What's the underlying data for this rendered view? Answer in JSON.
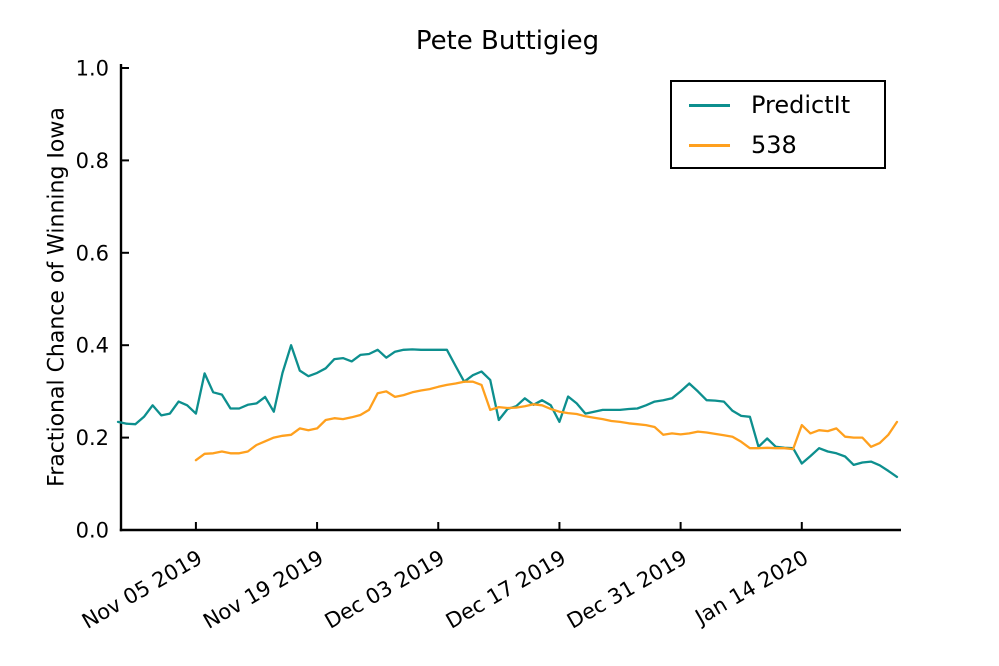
{
  "figure": {
    "background": "#ffffff",
    "text_color": "#000000"
  },
  "chart_data": {
    "type": "line",
    "title": "Pete Buttigieg",
    "xlabel": "",
    "ylabel": "Fractional Chance of Winning Iowa",
    "ylim": [
      0.0,
      1.0
    ],
    "ytick_values": [
      0.0,
      0.2,
      0.4,
      0.6,
      0.8,
      1.0
    ],
    "ytick_labels": [
      "0.0",
      "0.2",
      "0.4",
      "0.6",
      "0.8",
      "1.0"
    ],
    "x_range": [
      "2019-10-27",
      "2020-01-25"
    ],
    "xtick_dates": [
      "2019-11-05",
      "2019-11-19",
      "2019-12-03",
      "2019-12-17",
      "2019-12-31",
      "2020-01-14"
    ],
    "xtick_labels": [
      "Nov 05 2019",
      "Nov 19 2019",
      "Dec 03 2019",
      "Dec 17 2019",
      "Dec 31 2019",
      "Jan 14 2020"
    ],
    "xtick_rotation_deg": 30,
    "grid": false,
    "axis_color": "#000000",
    "legend": {
      "position": "upper right",
      "entries": [
        {
          "label": "PredictIt",
          "color": "#0d8f8e"
        },
        {
          "label": "538",
          "color": "#ffa01e"
        }
      ]
    },
    "series": [
      {
        "name": "PredictIt",
        "color": "#0d8f8e",
        "start_date": "2019-10-27",
        "values": [
          0.234,
          0.23,
          0.229,
          0.245,
          0.27,
          0.248,
          0.252,
          0.278,
          0.27,
          0.252,
          0.339,
          0.298,
          0.293,
          0.263,
          0.263,
          0.271,
          0.274,
          0.288,
          0.256,
          0.34,
          0.4,
          0.345,
          0.333,
          0.34,
          0.35,
          0.37,
          0.372,
          0.365,
          0.379,
          0.381,
          0.39,
          0.373,
          0.386,
          0.39,
          0.391,
          0.39,
          0.39,
          0.39,
          0.39,
          0.355,
          0.321,
          0.335,
          0.343,
          0.325,
          0.238,
          0.262,
          0.268,
          0.285,
          0.271,
          0.281,
          0.27,
          0.234,
          0.289,
          0.274,
          0.252,
          0.256,
          0.26,
          0.26,
          0.26,
          0.262,
          0.263,
          0.27,
          0.278,
          0.281,
          0.285,
          0.3,
          0.317,
          0.3,
          0.281,
          0.28,
          0.278,
          0.258,
          0.247,
          0.245,
          0.18,
          0.198,
          0.18,
          0.178,
          0.177,
          0.144,
          0.16,
          0.177,
          0.17,
          0.166,
          0.159,
          0.141,
          0.146,
          0.148,
          0.14,
          0.128,
          0.115
        ]
      },
      {
        "name": "538",
        "color": "#ffa01e",
        "start_date": "2019-11-05",
        "values": [
          0.151,
          0.165,
          0.166,
          0.17,
          0.166,
          0.166,
          0.17,
          0.184,
          0.192,
          0.2,
          0.204,
          0.206,
          0.22,
          0.216,
          0.22,
          0.238,
          0.242,
          0.24,
          0.244,
          0.249,
          0.26,
          0.296,
          0.3,
          0.288,
          0.292,
          0.298,
          0.302,
          0.305,
          0.31,
          0.314,
          0.317,
          0.321,
          0.321,
          0.314,
          0.26,
          0.266,
          0.264,
          0.265,
          0.268,
          0.272,
          0.27,
          0.262,
          0.256,
          0.253,
          0.251,
          0.246,
          0.243,
          0.24,
          0.236,
          0.234,
          0.231,
          0.229,
          0.227,
          0.223,
          0.206,
          0.209,
          0.207,
          0.209,
          0.213,
          0.211,
          0.208,
          0.205,
          0.202,
          0.191,
          0.177,
          0.177,
          0.178,
          0.177,
          0.177,
          0.175,
          0.227,
          0.209,
          0.216,
          0.214,
          0.22,
          0.202,
          0.2,
          0.2,
          0.18,
          0.188,
          0.206,
          0.234
        ]
      }
    ]
  }
}
